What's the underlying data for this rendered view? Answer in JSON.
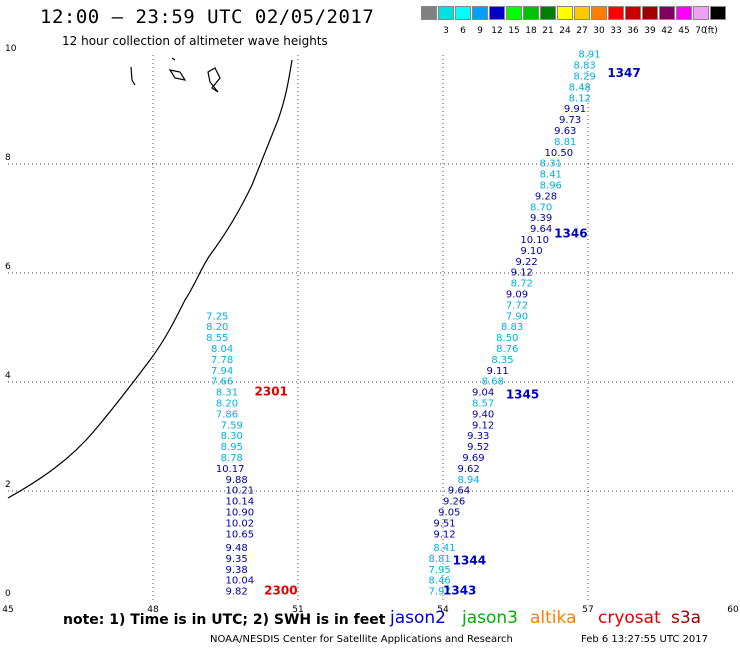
{
  "header": {
    "title": "12:00 – 23:59 UTC 02/05/2017",
    "subtitle": "12 hour collection of altimeter wave heights"
  },
  "legend": {
    "unit": "(ft)",
    "swatches": [
      {
        "label": "",
        "color": "#808080"
      },
      {
        "label": "3",
        "color": "#00e0e0"
      },
      {
        "label": "6",
        "color": "#00ffff"
      },
      {
        "label": "9",
        "color": "#00a0ff"
      },
      {
        "label": "12",
        "color": "#0000c8"
      },
      {
        "label": "15",
        "color": "#00ff00"
      },
      {
        "label": "18",
        "color": "#00c000"
      },
      {
        "label": "21",
        "color": "#008000"
      },
      {
        "label": "24",
        "color": "#ffff00"
      },
      {
        "label": "27",
        "color": "#ffc800"
      },
      {
        "label": "30",
        "color": "#ff8000"
      },
      {
        "label": "33",
        "color": "#ff0000"
      },
      {
        "label": "36",
        "color": "#c80000"
      },
      {
        "label": "39",
        "color": "#a00000"
      },
      {
        "label": "42",
        "color": "#800060"
      },
      {
        "label": "45",
        "color": "#ff00ff"
      },
      {
        "label": "70",
        "color": "#f0a0f0"
      },
      {
        "label": "",
        "color": "#000000"
      }
    ]
  },
  "axes": {
    "x_ticks": [
      "45",
      "48",
      "51",
      "54",
      "57",
      "60"
    ],
    "y_ticks": [
      "0",
      "2",
      "4",
      "6",
      "8",
      "10"
    ]
  },
  "colors": {
    "light": "#00b0e0",
    "dark": "#0000a0",
    "jason2": "#0000d0",
    "jason3": "#00b000",
    "altika": "#ff8000",
    "cryosat": "#e00000",
    "s3a": "#a00000"
  },
  "tracks": [
    {
      "sat": "jason2",
      "label_color": "#0000c0",
      "times": [
        {
          "text": "1343",
          "lon": 54.0,
          "lat": 0.1
        },
        {
          "text": "1344",
          "lon": 54.2,
          "lat": 0.65
        },
        {
          "text": "1345",
          "lon": 55.3,
          "lat": 3.7
        },
        {
          "text": "1346",
          "lon": 56.3,
          "lat": 6.65
        },
        {
          "text": "1347",
          "lon": 57.4,
          "lat": 9.6
        }
      ],
      "readings": [
        {
          "v": "7.97",
          "lon": 53.7,
          "lat": 0.1,
          "c": "light"
        },
        {
          "v": "8.46",
          "lon": 53.7,
          "lat": 0.3,
          "c": "light"
        },
        {
          "v": "7.95",
          "lon": 53.7,
          "lat": 0.5,
          "c": "light"
        },
        {
          "v": "8.81",
          "lon": 53.7,
          "lat": 0.7,
          "c": "light"
        },
        {
          "v": "8.41",
          "lon": 53.8,
          "lat": 0.9,
          "c": "light"
        },
        {
          "v": "9.12",
          "lon": 53.8,
          "lat": 1.15,
          "c": "dark"
        },
        {
          "v": "9.51",
          "lon": 53.8,
          "lat": 1.35,
          "c": "dark"
        },
        {
          "v": "9.05",
          "lon": 53.9,
          "lat": 1.55,
          "c": "dark"
        },
        {
          "v": "9.26",
          "lon": 54.0,
          "lat": 1.75,
          "c": "dark"
        },
        {
          "v": "9.64",
          "lon": 54.1,
          "lat": 1.95,
          "c": "dark"
        },
        {
          "v": "8.94",
          "lon": 54.3,
          "lat": 2.15,
          "c": "light"
        },
        {
          "v": "9.62",
          "lon": 54.3,
          "lat": 2.35,
          "c": "dark"
        },
        {
          "v": "9.69",
          "lon": 54.4,
          "lat": 2.55,
          "c": "dark"
        },
        {
          "v": "9.52",
          "lon": 54.5,
          "lat": 2.75,
          "c": "dark"
        },
        {
          "v": "9.33",
          "lon": 54.5,
          "lat": 2.95,
          "c": "dark"
        },
        {
          "v": "9.12",
          "lon": 54.6,
          "lat": 3.15,
          "c": "dark"
        },
        {
          "v": "9.40",
          "lon": 54.6,
          "lat": 3.35,
          "c": "dark"
        },
        {
          "v": "8.57",
          "lon": 54.6,
          "lat": 3.55,
          "c": "light"
        },
        {
          "v": "9.04",
          "lon": 54.6,
          "lat": 3.75,
          "c": "dark"
        },
        {
          "v": "8.68",
          "lon": 54.8,
          "lat": 3.95,
          "c": "light"
        },
        {
          "v": "9.11",
          "lon": 54.9,
          "lat": 4.15,
          "c": "dark"
        },
        {
          "v": "8.35",
          "lon": 55.0,
          "lat": 4.35,
          "c": "light"
        },
        {
          "v": "8.76",
          "lon": 55.1,
          "lat": 4.55,
          "c": "light"
        },
        {
          "v": "8.50",
          "lon": 55.1,
          "lat": 4.75,
          "c": "light"
        },
        {
          "v": "8.83",
          "lon": 55.2,
          "lat": 4.95,
          "c": "light"
        },
        {
          "v": "7.90",
          "lon": 55.3,
          "lat": 5.15,
          "c": "light"
        },
        {
          "v": "7.72",
          "lon": 55.3,
          "lat": 5.35,
          "c": "light"
        },
        {
          "v": "9.09",
          "lon": 55.3,
          "lat": 5.55,
          "c": "dark"
        },
        {
          "v": "8.72",
          "lon": 55.4,
          "lat": 5.75,
          "c": "light"
        },
        {
          "v": "9.12",
          "lon": 55.4,
          "lat": 5.95,
          "c": "dark"
        },
        {
          "v": "9.22",
          "lon": 55.5,
          "lat": 6.15,
          "c": "dark"
        },
        {
          "v": "9.10",
          "lon": 55.6,
          "lat": 6.35,
          "c": "dark"
        },
        {
          "v": "10.10",
          "lon": 55.6,
          "lat": 6.55,
          "c": "dark"
        },
        {
          "v": "9.64",
          "lon": 55.8,
          "lat": 6.75,
          "c": "dark"
        },
        {
          "v": "9.39",
          "lon": 55.8,
          "lat": 6.95,
          "c": "dark"
        },
        {
          "v": "8.70",
          "lon": 55.8,
          "lat": 7.15,
          "c": "light"
        },
        {
          "v": "9.28",
          "lon": 55.9,
          "lat": 7.35,
          "c": "dark"
        },
        {
          "v": "8.96",
          "lon": 56.0,
          "lat": 7.55,
          "c": "light"
        },
        {
          "v": "8.41",
          "lon": 56.0,
          "lat": 7.75,
          "c": "light"
        },
        {
          "v": "8.31",
          "lon": 56.0,
          "lat": 7.95,
          "c": "light"
        },
        {
          "v": "10.50",
          "lon": 56.1,
          "lat": 8.15,
          "c": "dark"
        },
        {
          "v": "8.81",
          "lon": 56.3,
          "lat": 8.35,
          "c": "light"
        },
        {
          "v": "9.63",
          "lon": 56.3,
          "lat": 8.55,
          "c": "dark"
        },
        {
          "v": "9.73",
          "lon": 56.4,
          "lat": 8.75,
          "c": "dark"
        },
        {
          "v": "9.91",
          "lon": 56.5,
          "lat": 8.95,
          "c": "dark"
        },
        {
          "v": "8.12",
          "lon": 56.6,
          "lat": 9.15,
          "c": "light"
        },
        {
          "v": "8.48",
          "lon": 56.6,
          "lat": 9.35,
          "c": "light"
        },
        {
          "v": "8.29",
          "lon": 56.7,
          "lat": 9.55,
          "c": "light"
        },
        {
          "v": "8.83",
          "lon": 56.7,
          "lat": 9.75,
          "c": "light"
        },
        {
          "v": "8.91",
          "lon": 56.8,
          "lat": 9.95,
          "c": "light"
        }
      ]
    },
    {
      "sat": "cryosat",
      "label_color": "#e00000",
      "times": [
        {
          "text": "2300",
          "lon": 50.3,
          "lat": 0.1
        },
        {
          "text": "2301",
          "lon": 50.1,
          "lat": 3.75
        }
      ],
      "readings": [
        {
          "v": "9.82",
          "lon": 49.5,
          "lat": 0.1,
          "c": "dark"
        },
        {
          "v": "10.04",
          "lon": 49.5,
          "lat": 0.3,
          "c": "dark"
        },
        {
          "v": "9.38",
          "lon": 49.5,
          "lat": 0.5,
          "c": "dark"
        },
        {
          "v": "9.35",
          "lon": 49.5,
          "lat": 0.7,
          "c": "dark"
        },
        {
          "v": "9.48",
          "lon": 49.5,
          "lat": 0.9,
          "c": "dark"
        },
        {
          "v": "10.65",
          "lon": 49.5,
          "lat": 1.15,
          "c": "dark"
        },
        {
          "v": "10.02",
          "lon": 49.5,
          "lat": 1.35,
          "c": "dark"
        },
        {
          "v": "10.90",
          "lon": 49.5,
          "lat": 1.55,
          "c": "dark"
        },
        {
          "v": "10.14",
          "lon": 49.5,
          "lat": 1.75,
          "c": "dark"
        },
        {
          "v": "10.21",
          "lon": 49.5,
          "lat": 1.95,
          "c": "dark"
        },
        {
          "v": "9.88",
          "lon": 49.5,
          "lat": 2.15,
          "c": "dark"
        },
        {
          "v": "10.17",
          "lon": 49.3,
          "lat": 2.35,
          "c": "dark"
        },
        {
          "v": "8.78",
          "lon": 49.4,
          "lat": 2.55,
          "c": "light"
        },
        {
          "v": "8.95",
          "lon": 49.4,
          "lat": 2.75,
          "c": "light"
        },
        {
          "v": "8.30",
          "lon": 49.4,
          "lat": 2.95,
          "c": "light"
        },
        {
          "v": "7.59",
          "lon": 49.4,
          "lat": 3.15,
          "c": "light"
        },
        {
          "v": "7.86",
          "lon": 49.3,
          "lat": 3.35,
          "c": "light"
        },
        {
          "v": "8.20",
          "lon": 49.3,
          "lat": 3.55,
          "c": "light"
        },
        {
          "v": "8.31",
          "lon": 49.3,
          "lat": 3.75,
          "c": "light"
        },
        {
          "v": "7.66",
          "lon": 49.2,
          "lat": 3.95,
          "c": "light"
        },
        {
          "v": "7.94",
          "lon": 49.2,
          "lat": 4.15,
          "c": "light"
        },
        {
          "v": "7.78",
          "lon": 49.2,
          "lat": 4.35,
          "c": "light"
        },
        {
          "v": "8.04",
          "lon": 49.2,
          "lat": 4.55,
          "c": "light"
        },
        {
          "v": "8.55",
          "lon": 49.1,
          "lat": 4.75,
          "c": "light"
        },
        {
          "v": "8.20",
          "lon": 49.1,
          "lat": 4.95,
          "c": "light"
        },
        {
          "v": "7.25",
          "lon": 49.1,
          "lat": 5.15,
          "c": "light"
        }
      ]
    }
  ],
  "footer": {
    "note": "note: 1) Time is in UTC; 2) SWH is in feet",
    "satellites": [
      {
        "key": "jason2",
        "label": "jason2"
      },
      {
        "key": "jason3",
        "label": "jason3"
      },
      {
        "key": "altika",
        "label": "altika"
      },
      {
        "key": "cryosat",
        "label": "cryosat"
      },
      {
        "key": "s3a",
        "label": "s3a"
      }
    ],
    "credit": "NOAA/NESDIS Center for Satellite Applications and Research",
    "timestamp": "Feb  6 13:27:55 UTC 2017"
  }
}
